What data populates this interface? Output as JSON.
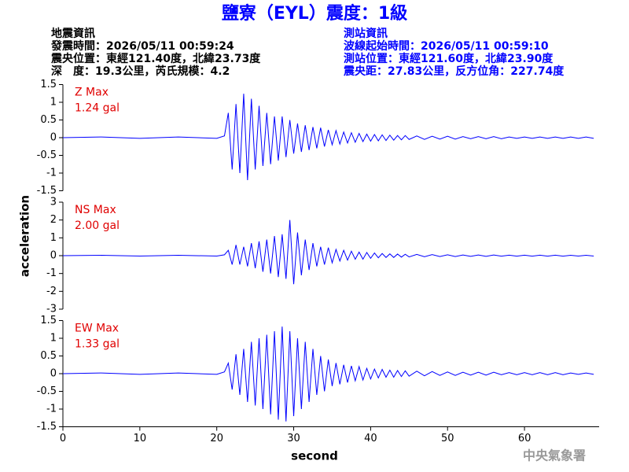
{
  "header": {
    "title": "鹽寮（EYL）震度：1級",
    "left": [
      "地震資訊",
      "發震時間：2026/05/11 00:59:24",
      "震央位置：東經121.40度，北緯23.73度",
      "深　度：19.3公里，芮氏規模：4.2"
    ],
    "right": [
      "測站資訊",
      "波線起始時間：2026/05/11 00:59:10",
      "測站位置：東經121.60度，北緯23.90度",
      "震央距：27.83公里，反方位角：227.74度"
    ]
  },
  "x_label": "second",
  "y_label": "acceleration",
  "footer": "中央氣象署",
  "chart_data": [
    {
      "type": "line",
      "annotations": [
        "Z Max",
        "1.24 gal"
      ],
      "xlim": [
        0,
        69.7
      ],
      "ylim": [
        -1.5,
        1.5
      ],
      "yticks": [
        -1.5,
        -1,
        -0.5,
        0,
        0.5,
        1,
        1.5
      ],
      "x": [
        0,
        5,
        10,
        15,
        20,
        21,
        21.5,
        22,
        22.5,
        23,
        23.5,
        24,
        24.5,
        25,
        25.5,
        26,
        26.5,
        27,
        27.5,
        28,
        28.5,
        29,
        29.5,
        30,
        30.5,
        31,
        31.5,
        32,
        32.5,
        33,
        33.5,
        34,
        34.5,
        35,
        35.5,
        36,
        36.5,
        37,
        37.5,
        38,
        38.5,
        39,
        39.5,
        40,
        40.5,
        41,
        41.5,
        42,
        42.5,
        43,
        43.5,
        44,
        44.5,
        45,
        46,
        47,
        48,
        49,
        50,
        51,
        52,
        53,
        54,
        55,
        56,
        57,
        58,
        59,
        60,
        61,
        62,
        63,
        64,
        65,
        66,
        67,
        68,
        69
      ],
      "series": [
        {
          "color": "#0000ff",
          "values": [
            0,
            0.02,
            -0.02,
            0.02,
            -0.02,
            0.05,
            0.7,
            -0.9,
            0.95,
            -1.0,
            1.24,
            -1.2,
            1.1,
            -0.9,
            0.9,
            -0.8,
            0.7,
            -0.75,
            0.6,
            -0.65,
            0.6,
            -0.55,
            0.5,
            -0.45,
            0.4,
            -0.4,
            0.35,
            -0.35,
            0.3,
            -0.3,
            0.28,
            -0.25,
            0.22,
            -0.2,
            0.2,
            -0.18,
            0.16,
            -0.15,
            0.14,
            -0.13,
            0.12,
            -0.11,
            0.1,
            -0.1,
            0.09,
            -0.09,
            0.08,
            -0.08,
            0.07,
            -0.07,
            0.06,
            -0.06,
            0.06,
            -0.05,
            0.05,
            -0.05,
            0.04,
            -0.04,
            0.04,
            -0.04,
            0.03,
            -0.03,
            0.03,
            -0.03,
            0.03,
            -0.03,
            0.02,
            -0.02,
            0.02,
            -0.02,
            0.02,
            -0.02,
            0.02,
            -0.02,
            0.02,
            -0.02,
            0.02,
            -0.02
          ]
        }
      ]
    },
    {
      "type": "line",
      "annotations": [
        "NS Max",
        "2.00 gal"
      ],
      "xlim": [
        0,
        69.7
      ],
      "ylim": [
        -3,
        3
      ],
      "yticks": [
        -3,
        -2,
        -1,
        0,
        1,
        2,
        3
      ],
      "x": [
        0,
        5,
        10,
        15,
        20,
        21,
        21.5,
        22,
        22.5,
        23,
        23.5,
        24,
        24.5,
        25,
        25.5,
        26,
        26.5,
        27,
        27.5,
        28,
        28.5,
        29,
        29.5,
        30,
        30.5,
        31,
        31.5,
        32,
        32.5,
        33,
        33.5,
        34,
        34.5,
        35,
        35.5,
        36,
        36.5,
        37,
        37.5,
        38,
        38.5,
        39,
        39.5,
        40,
        40.5,
        41,
        41.5,
        42,
        42.5,
        43,
        43.5,
        44,
        44.5,
        45,
        46,
        47,
        48,
        49,
        50,
        51,
        52,
        53,
        54,
        55,
        56,
        57,
        58,
        59,
        60,
        61,
        62,
        63,
        64,
        65,
        66,
        67,
        68,
        69
      ],
      "series": [
        {
          "color": "#0000ff",
          "values": [
            0,
            0.02,
            -0.02,
            0.02,
            -0.02,
            0.05,
            0.3,
            -0.5,
            0.6,
            -0.5,
            0.5,
            -0.6,
            0.7,
            -0.7,
            0.8,
            -0.9,
            0.9,
            -1.0,
            1.1,
            -1.2,
            1.2,
            -1.3,
            2.0,
            -1.6,
            1.3,
            -1.1,
            0.9,
            -0.8,
            0.7,
            -0.6,
            0.5,
            -0.5,
            0.45,
            -0.4,
            0.35,
            -0.3,
            0.3,
            -0.25,
            0.25,
            -0.2,
            0.2,
            -0.2,
            0.18,
            -0.15,
            0.15,
            -0.12,
            0.12,
            -0.1,
            0.1,
            -0.1,
            0.09,
            -0.08,
            0.08,
            -0.07,
            0.07,
            -0.06,
            0.06,
            -0.05,
            0.05,
            -0.05,
            0.04,
            -0.04,
            0.04,
            -0.04,
            0.04,
            -0.03,
            0.03,
            -0.03,
            0.03,
            -0.03,
            0.03,
            -0.03,
            0.03,
            -0.03,
            0.02,
            -0.02,
            0.02,
            -0.02
          ]
        }
      ]
    },
    {
      "type": "line",
      "annotations": [
        "EW Max",
        "1.33 gal"
      ],
      "xlim": [
        0,
        69.7
      ],
      "ylim": [
        -1.5,
        1.5
      ],
      "yticks": [
        -1.5,
        -1,
        -0.5,
        0,
        0.5,
        1,
        1.5
      ],
      "xticks": [
        0,
        10,
        20,
        30,
        40,
        50,
        60
      ],
      "x": [
        0,
        5,
        10,
        15,
        20,
        21,
        21.5,
        22,
        22.5,
        23,
        23.5,
        24,
        24.5,
        25,
        25.5,
        26,
        26.5,
        27,
        27.5,
        28,
        28.5,
        29,
        29.5,
        30,
        30.5,
        31,
        31.5,
        32,
        32.5,
        33,
        33.5,
        34,
        34.5,
        35,
        35.5,
        36,
        36.5,
        37,
        37.5,
        38,
        38.5,
        39,
        39.5,
        40,
        40.5,
        41,
        41.5,
        42,
        42.5,
        43,
        43.5,
        44,
        44.5,
        45,
        46,
        47,
        48,
        49,
        50,
        51,
        52,
        53,
        54,
        55,
        56,
        57,
        58,
        59,
        60,
        61,
        62,
        63,
        64,
        65,
        66,
        67,
        68,
        69
      ],
      "series": [
        {
          "color": "#0000ff",
          "values": [
            0,
            0.02,
            -0.02,
            0.02,
            -0.02,
            0.05,
            0.3,
            -0.45,
            0.55,
            -0.6,
            0.7,
            -0.8,
            0.9,
            -0.9,
            1.0,
            -1.0,
            1.1,
            -1.15,
            1.2,
            -1.3,
            1.33,
            -1.35,
            1.2,
            -1.2,
            1.0,
            -1.0,
            0.9,
            -0.8,
            0.7,
            -0.6,
            0.5,
            -0.5,
            0.4,
            -0.35,
            0.3,
            -0.3,
            0.25,
            -0.25,
            0.22,
            -0.2,
            0.2,
            -0.18,
            0.15,
            -0.15,
            0.13,
            -0.12,
            0.12,
            -0.1,
            0.1,
            -0.1,
            0.09,
            -0.08,
            0.08,
            -0.07,
            0.07,
            -0.06,
            0.06,
            -0.05,
            0.05,
            -0.05,
            0.04,
            -0.04,
            0.04,
            -0.04,
            0.04,
            -0.03,
            0.03,
            -0.03,
            0.03,
            -0.03,
            0.03,
            -0.03,
            0.03,
            -0.03,
            0.02,
            -0.02,
            0.02,
            -0.02
          ]
        }
      ]
    }
  ]
}
